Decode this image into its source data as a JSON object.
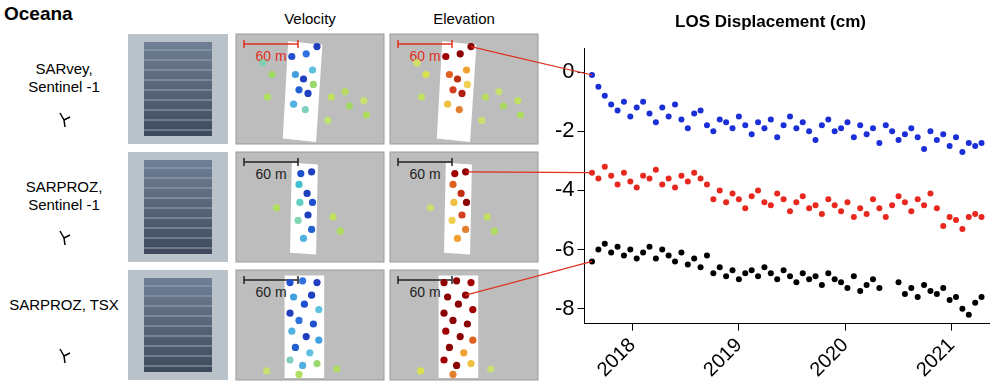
{
  "title": "Oceana",
  "panel_titles": [
    "Velocity",
    "Elevation"
  ],
  "rows": [
    {
      "scale_bar": {
        "length": 60,
        "label": "60 m",
        "color": "#e0301e"
      },
      "points": [
        {
          "x": 90,
          "y": 14,
          "velocity_color": "#1f3fbf",
          "elevation_color": "#8b0000"
        },
        {
          "x": 62,
          "y": 25,
          "velocity_color": "#2050d0",
          "elevation_color": "#a00000"
        },
        {
          "x": 78,
          "y": 22,
          "velocity_color": "#3070e0",
          "elevation_color": "#8b0000"
        },
        {
          "x": 66,
          "y": 45,
          "velocity_color": "#40a0e0",
          "elevation_color": "#e06020"
        },
        {
          "x": 75,
          "y": 50,
          "velocity_color": "#1f3fbf",
          "elevation_color": "#c03010"
        },
        {
          "x": 85,
          "y": 40,
          "velocity_color": "#60c0e0",
          "elevation_color": "#f0a030"
        },
        {
          "x": 70,
          "y": 62,
          "velocity_color": "#2060d0",
          "elevation_color": "#d04020"
        },
        {
          "x": 80,
          "y": 66,
          "velocity_color": "#1f3fbf",
          "elevation_color": "#b02010"
        },
        {
          "x": 64,
          "y": 78,
          "velocity_color": "#50b0e0",
          "elevation_color": "#f0c040"
        },
        {
          "x": 77,
          "y": 84,
          "velocity_color": "#80d0c0",
          "elevation_color": "#e08030"
        },
        {
          "x": 86,
          "y": 56,
          "velocity_color": "#9ad870",
          "elevation_color": "#f0d050"
        },
        {
          "x": 40,
          "y": 45,
          "velocity_color": "#a0d860",
          "elevation_color": "#d8e050"
        },
        {
          "x": 35,
          "y": 70,
          "velocity_color": "#b0e060",
          "elevation_color": "#c0e060"
        },
        {
          "x": 106,
          "y": 70,
          "velocity_color": "#c0e060",
          "elevation_color": "#b8dc60"
        },
        {
          "x": 121,
          "y": 64,
          "velocity_color": "#b8dc60",
          "elevation_color": "#c8e070"
        },
        {
          "x": 126,
          "y": 80,
          "velocity_color": "#a0d860",
          "elevation_color": "#a8d860"
        },
        {
          "x": 142,
          "y": 74,
          "velocity_color": "#c8e070",
          "elevation_color": "#c0e060"
        },
        {
          "x": 145,
          "y": 90,
          "velocity_color": "#b0dc60",
          "elevation_color": "#b0dc60"
        },
        {
          "x": 102,
          "y": 96,
          "velocity_color": "#c0e070",
          "elevation_color": "#c8e070"
        },
        {
          "x": 30,
          "y": 32,
          "velocity_color": "#80d0b0",
          "elevation_color": "#d0e060"
        }
      ]
    },
    {
      "scale_bar": {
        "length": 60,
        "label": "60 m",
        "color": "#222222"
      },
      "points": [
        {
          "x": 84,
          "y": 22,
          "velocity_color": "#1f3fbf",
          "elevation_color": "#8b0000"
        },
        {
          "x": 72,
          "y": 24,
          "velocity_color": "#2050d0",
          "elevation_color": "#a00000"
        },
        {
          "x": 70,
          "y": 36,
          "velocity_color": "#40c0d0",
          "elevation_color": "#e06020"
        },
        {
          "x": 79,
          "y": 46,
          "velocity_color": "#1f3fbf",
          "elevation_color": "#c03010"
        },
        {
          "x": 85,
          "y": 56,
          "velocity_color": "#2050d0",
          "elevation_color": "#8b0000"
        },
        {
          "x": 71,
          "y": 56,
          "velocity_color": "#60d0c0",
          "elevation_color": "#f0c040"
        },
        {
          "x": 80,
          "y": 70,
          "velocity_color": "#1f3fbf",
          "elevation_color": "#d04020"
        },
        {
          "x": 69,
          "y": 76,
          "velocity_color": "#80d8b0",
          "elevation_color": "#f0d050"
        },
        {
          "x": 84,
          "y": 86,
          "velocity_color": "#2060d0",
          "elevation_color": "#e08030"
        },
        {
          "x": 75,
          "y": 96,
          "velocity_color": "#50b0e0",
          "elevation_color": "#f0a030"
        },
        {
          "x": 45,
          "y": 62,
          "velocity_color": "#b0e060",
          "elevation_color": "#c8e070"
        },
        {
          "x": 108,
          "y": 72,
          "velocity_color": "#c0e060",
          "elevation_color": "#c0e060"
        },
        {
          "x": 116,
          "y": 88,
          "velocity_color": "#b0dc60",
          "elevation_color": "#b0dc60"
        }
      ]
    },
    {
      "scale_bar": {
        "length": 60,
        "label": "60 m",
        "color": "#222222"
      },
      "points": [
        {
          "x": 84,
          "y": 28,
          "velocity_color": "#1f3fbf",
          "elevation_color": "#8b0000"
        },
        {
          "x": 60,
          "y": 14,
          "velocity_color": "#2050d0",
          "elevation_color": "#8b0000"
        },
        {
          "x": 74,
          "y": 12,
          "velocity_color": "#3070e0",
          "elevation_color": "#8b0000"
        },
        {
          "x": 90,
          "y": 14,
          "velocity_color": "#1f3fbf",
          "elevation_color": "#a00000"
        },
        {
          "x": 64,
          "y": 30,
          "velocity_color": "#40a0e0",
          "elevation_color": "#8b0000"
        },
        {
          "x": 76,
          "y": 38,
          "velocity_color": "#2050d0",
          "elevation_color": "#8b0000"
        },
        {
          "x": 92,
          "y": 44,
          "velocity_color": "#60c0e0",
          "elevation_color": "#a00000"
        },
        {
          "x": 60,
          "y": 48,
          "velocity_color": "#1f3fbf",
          "elevation_color": "#8b0000"
        },
        {
          "x": 70,
          "y": 56,
          "velocity_color": "#3070e0",
          "elevation_color": "#8b0000"
        },
        {
          "x": 86,
          "y": 60,
          "velocity_color": "#2050d0",
          "elevation_color": "#8b0000"
        },
        {
          "x": 62,
          "y": 68,
          "velocity_color": "#50b0e0",
          "elevation_color": "#a00000"
        },
        {
          "x": 78,
          "y": 74,
          "velocity_color": "#1f3fbf",
          "elevation_color": "#8b0000"
        },
        {
          "x": 92,
          "y": 78,
          "velocity_color": "#40a0e0",
          "elevation_color": "#e06020"
        },
        {
          "x": 66,
          "y": 86,
          "velocity_color": "#2060d0",
          "elevation_color": "#8b0000"
        },
        {
          "x": 82,
          "y": 92,
          "velocity_color": "#60c0e0",
          "elevation_color": "#f0a030"
        },
        {
          "x": 60,
          "y": 100,
          "velocity_color": "#80d0c0",
          "elevation_color": "#a00000"
        },
        {
          "x": 74,
          "y": 106,
          "velocity_color": "#50b0e0",
          "elevation_color": "#8b0000"
        },
        {
          "x": 90,
          "y": 104,
          "velocity_color": "#9ad870",
          "elevation_color": "#f0c040"
        },
        {
          "x": 70,
          "y": 116,
          "velocity_color": "#b0e060",
          "elevation_color": "#e08030"
        },
        {
          "x": 34,
          "y": 112,
          "velocity_color": "#c8e070",
          "elevation_color": "#d8e050"
        },
        {
          "x": 112,
          "y": 110,
          "velocity_color": "#b0dc60",
          "elevation_color": "#c8e070"
        }
      ]
    }
  ],
  "chart_data": {
    "type": "scatter",
    "title": "LOS Displacement (cm)",
    "x": [
      2017.62,
      2017.68,
      2017.74,
      2017.8,
      2017.86,
      2017.92,
      2017.98,
      2018.04,
      2018.1,
      2018.16,
      2018.22,
      2018.28,
      2018.34,
      2018.4,
      2018.46,
      2018.52,
      2018.58,
      2018.64,
      2018.7,
      2018.76,
      2018.82,
      2018.88,
      2018.94,
      2019.0,
      2019.06,
      2019.12,
      2019.18,
      2019.24,
      2019.3,
      2019.36,
      2019.42,
      2019.48,
      2019.54,
      2019.6,
      2019.66,
      2019.72,
      2019.78,
      2019.84,
      2019.9,
      2019.96,
      2020.02,
      2020.08,
      2020.14,
      2020.2,
      2020.26,
      2020.32,
      2020.38,
      2020.44,
      2020.5,
      2020.56,
      2020.62,
      2020.68,
      2020.74,
      2020.8,
      2020.86,
      2020.92,
      2020.98,
      2021.04,
      2021.1,
      2021.16,
      2021.22,
      2021.28
    ],
    "series": [
      {
        "name": "SARvey, Sentinel -1",
        "color": "#1a2fd8",
        "values": [
          -0.1,
          -0.5,
          -0.8,
          -1.1,
          -1.3,
          -1.0,
          -1.5,
          -1.2,
          -1.0,
          -1.4,
          -1.7,
          -1.2,
          -1.5,
          -1.1,
          -1.6,
          -1.9,
          -1.4,
          -1.3,
          -1.8,
          -2.0,
          -1.6,
          -1.7,
          -1.9,
          -1.5,
          -1.8,
          -2.1,
          -1.7,
          -1.9,
          -1.6,
          -2.2,
          -1.8,
          -1.5,
          -1.9,
          -1.7,
          -2.0,
          -2.3,
          -1.8,
          -1.6,
          -2.0,
          -1.9,
          -1.7,
          -2.2,
          -1.8,
          -2.1,
          -1.9,
          -2.4,
          -1.8,
          -2.0,
          -2.3,
          -2.1,
          -1.9,
          -2.2,
          -2.6,
          -2.0,
          -2.3,
          -2.1,
          -2.5,
          -2.2,
          -2.7,
          -2.4,
          -2.5,
          -2.4
        ]
      },
      {
        "name": "SARPROZ, Sentinel -1",
        "color": "#e8281e",
        "values": [
          -3.4,
          -3.6,
          -3.2,
          -3.5,
          -3.8,
          -3.4,
          -3.7,
          -3.9,
          -3.5,
          -3.6,
          -3.3,
          -3.8,
          -3.6,
          -3.9,
          -3.5,
          -3.7,
          -3.4,
          -3.6,
          -3.8,
          -4.3,
          -4.0,
          -4.4,
          -4.1,
          -4.3,
          -4.6,
          -4.2,
          -4.0,
          -4.4,
          -4.5,
          -4.1,
          -4.3,
          -4.7,
          -4.4,
          -4.2,
          -4.6,
          -4.5,
          -4.8,
          -4.3,
          -4.5,
          -4.7,
          -4.4,
          -4.9,
          -4.6,
          -4.8,
          -4.3,
          -4.6,
          -4.9,
          -4.5,
          -4.2,
          -4.4,
          -4.7,
          -4.3,
          -4.5,
          -4.1,
          -4.6,
          -5.2,
          -4.9,
          -5.0,
          -5.3,
          -4.9,
          -4.8,
          -4.9
        ]
      },
      {
        "name": "SARPROZ, TSX",
        "color": "#000000",
        "values": [
          -6.4,
          -6.0,
          -5.8,
          -6.1,
          -5.9,
          -6.2,
          -6.0,
          -6.3,
          -6.1,
          -5.9,
          -6.3,
          -6.0,
          -6.2,
          -6.4,
          -6.1,
          -6.5,
          -6.3,
          -6.6,
          -6.2,
          -6.8,
          -6.6,
          -6.9,
          -6.7,
          -7.0,
          -6.8,
          -6.7,
          -6.9,
          -6.6,
          -6.8,
          -7.0,
          -6.7,
          -6.9,
          -7.1,
          -6.8,
          -7.0,
          -6.9,
          -7.2,
          -6.8,
          -7.0,
          -7.1,
          -7.3,
          -6.9,
          -7.4,
          -7.2,
          -7.0,
          -7.3,
          null,
          null,
          -7.1,
          -7.5,
          -7.3,
          -7.6,
          -7.2,
          -7.4,
          -7.5,
          -7.3,
          -7.7,
          -7.6,
          -8.0,
          -8.2,
          -7.8,
          -7.6
        ]
      }
    ],
    "xlim": [
      2017.55,
      2021.35
    ],
    "xticks": [
      2018,
      2019,
      2020,
      2021
    ],
    "ylim": [
      -8.5,
      0.8
    ],
    "yticks": [
      0,
      -2,
      -4,
      -6,
      -8
    ],
    "grid": false,
    "marker": "circle"
  }
}
